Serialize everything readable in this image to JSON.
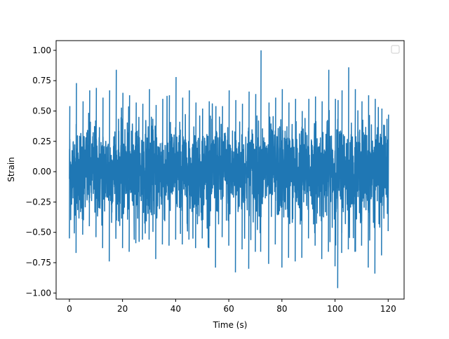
{
  "chart_data": {
    "type": "line",
    "title": "",
    "xlabel": "Time (s)",
    "ylabel": "Strain",
    "xlim": [
      -5,
      126
    ],
    "ylim": [
      -1.05,
      1.08
    ],
    "xticks": [
      0,
      20,
      40,
      60,
      80,
      100,
      120
    ],
    "xtick_labels": [
      "0",
      "20",
      "40",
      "60",
      "80",
      "100",
      "120"
    ],
    "yticks": [
      -1.0,
      -0.75,
      -0.5,
      -0.25,
      0.0,
      0.25,
      0.5,
      0.75,
      1.0
    ],
    "ytick_labels": [
      "−1.00",
      "−0.75",
      "−0.50",
      "−0.25",
      "0.00",
      "0.25",
      "0.50",
      "0.75",
      "1.00"
    ],
    "grid": false,
    "legend": {
      "placement": "top-right",
      "entries": []
    },
    "series": [
      {
        "color": "#1f77b4",
        "description": "dense noise-like strain signal, roughly 0 to 120 s",
        "x": [
          0.0,
          2.5,
          5.0,
          7.5,
          10.0,
          12.5,
          15.0,
          17.5,
          20.0,
          22.5,
          25.0,
          27.5,
          30.0,
          32.5,
          35.0,
          37.5,
          40.0,
          42.5,
          45.0,
          47.5,
          50.0,
          52.5,
          55.0,
          57.5,
          60.0,
          62.5,
          65.0,
          67.5,
          70.0,
          72.0,
          75.0,
          77.5,
          80.0,
          82.5,
          85.0,
          87.5,
          90.0,
          92.5,
          95.0,
          97.5,
          100.0,
          101.0,
          102.5,
          105.0,
          107.5,
          110.0,
          112.5,
          115.0,
          117.5,
          120.0
        ],
        "upper": [
          0.54,
          0.73,
          0.58,
          0.67,
          0.69,
          0.61,
          0.67,
          0.84,
          0.65,
          0.63,
          0.57,
          0.56,
          0.68,
          0.55,
          0.6,
          0.63,
          0.78,
          0.61,
          0.67,
          0.57,
          0.52,
          0.58,
          0.54,
          0.54,
          0.67,
          0.59,
          0.56,
          0.66,
          0.64,
          1.0,
          0.57,
          0.61,
          0.68,
          0.57,
          0.6,
          0.5,
          0.6,
          0.62,
          0.58,
          0.84,
          0.6,
          0.59,
          0.67,
          0.86,
          0.68,
          0.58,
          0.63,
          0.6,
          0.52,
          0.47
        ],
        "lower": [
          -0.55,
          -0.67,
          -0.52,
          -0.45,
          -0.54,
          -0.63,
          -0.74,
          -0.55,
          -0.63,
          -0.66,
          -0.59,
          -0.56,
          -0.56,
          -0.72,
          -0.6,
          -0.61,
          -0.56,
          -0.6,
          -0.56,
          -0.63,
          -0.55,
          -0.63,
          -0.79,
          -0.54,
          -0.61,
          -0.83,
          -0.64,
          -0.8,
          -0.66,
          -0.66,
          -0.76,
          -0.6,
          -0.79,
          -0.71,
          -0.74,
          -0.71,
          -0.55,
          -0.61,
          -0.72,
          -0.66,
          -0.78,
          -0.96,
          -0.67,
          -0.64,
          -0.66,
          -0.61,
          -0.79,
          -0.84,
          -0.69,
          -0.49
        ],
        "typical_band": [
          -0.35,
          0.35
        ]
      }
    ]
  }
}
